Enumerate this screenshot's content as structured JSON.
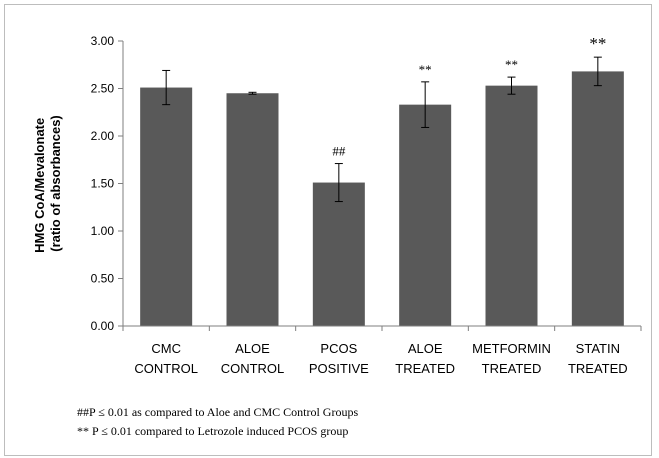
{
  "chart_data": {
    "type": "bar",
    "categories": [
      [
        "CMC",
        "CONTROL"
      ],
      [
        "ALOE",
        "CONTROL"
      ],
      [
        "PCOS",
        "POSITIVE"
      ],
      [
        "ALOE",
        "TREATED"
      ],
      [
        "METFORMIN",
        "TREATED"
      ],
      [
        "STATIN",
        "TREATED"
      ]
    ],
    "values": [
      2.51,
      2.45,
      1.51,
      2.33,
      2.53,
      2.68
    ],
    "errors": [
      0.18,
      0.01,
      0.2,
      0.24,
      0.09,
      0.15
    ],
    "significance": [
      "",
      "",
      "##",
      "**",
      "**",
      "**"
    ],
    "ylabel": [
      "HMG CoA/Mevalonate",
      "(ratio of absorbances)"
    ],
    "ylim": [
      0,
      3.0
    ],
    "yticks": [
      "0.00",
      "0.50",
      "1.00",
      "1.50",
      "2.00",
      "2.50",
      "3.00"
    ],
    "bar_color": "#595959",
    "grid": false
  },
  "footnotes": {
    "line1": "##P ≤ 0.01 as compared to Aloe and CMC Control Groups",
    "line2": "** P ≤ 0.01  compared to Letrozole induced PCOS group"
  }
}
